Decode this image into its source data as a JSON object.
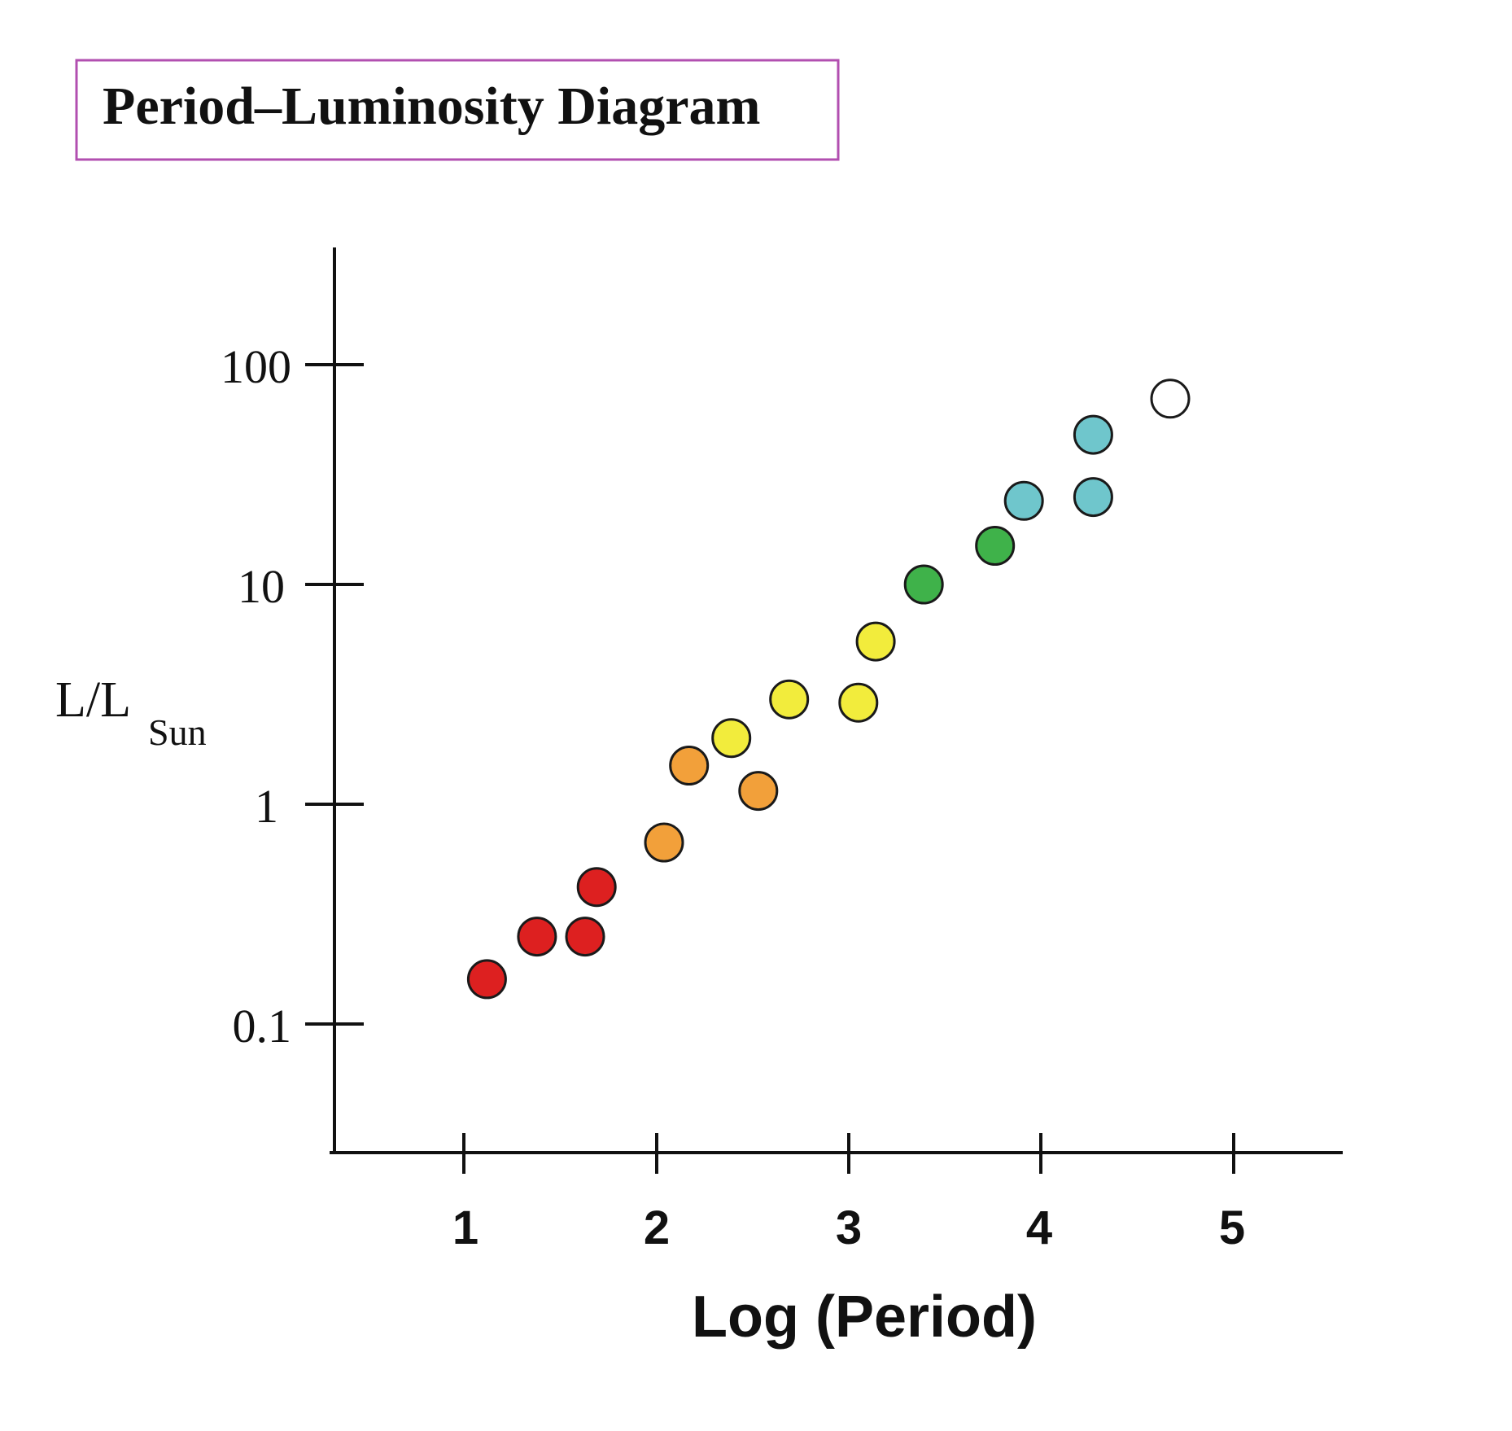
{
  "chart_data": {
    "type": "scatter",
    "title": "Period–Luminosity Diagram",
    "xlabel": "Log (Period)",
    "ylabel": "L/L",
    "ylabel_subscript": "Sun",
    "x_ticks": [
      "1",
      "2",
      "3",
      "4",
      "5"
    ],
    "y_ticks": [
      "100",
      "10",
      "1",
      "0.1"
    ],
    "y_scale": "log",
    "xlim": [
      0.33,
      5.55
    ],
    "ylim": [
      0.025,
      300
    ],
    "grid": false,
    "legend": "none",
    "colors": {
      "title_border": "#b24fb0",
      "axis": "#111111",
      "point_stroke": "#1a1a1a"
    },
    "points": [
      {
        "x": 1.12,
        "y": 0.16,
        "color": "#dd2020"
      },
      {
        "x": 1.38,
        "y": 0.25,
        "color": "#dd2020"
      },
      {
        "x": 1.63,
        "y": 0.25,
        "color": "#dd2020"
      },
      {
        "x": 1.69,
        "y": 0.42,
        "color": "#dd2020"
      },
      {
        "x": 2.04,
        "y": 0.67,
        "color": "#f2a03a"
      },
      {
        "x": 2.17,
        "y": 1.5,
        "color": "#f2a03a"
      },
      {
        "x": 2.53,
        "y": 1.15,
        "color": "#f2a03a"
      },
      {
        "x": 2.39,
        "y": 2.0,
        "color": "#f2ec3c"
      },
      {
        "x": 2.69,
        "y": 3.0,
        "color": "#f2ec3c"
      },
      {
        "x": 3.05,
        "y": 2.9,
        "color": "#f2ec3c"
      },
      {
        "x": 3.14,
        "y": 5.5,
        "color": "#f2ec3c"
      },
      {
        "x": 3.39,
        "y": 10.0,
        "color": "#3fb24a"
      },
      {
        "x": 3.76,
        "y": 15.0,
        "color": "#3fb24a"
      },
      {
        "x": 3.91,
        "y": 24.0,
        "color": "#6fc6cc"
      },
      {
        "x": 4.27,
        "y": 25.0,
        "color": "#6fc6cc"
      },
      {
        "x": 4.27,
        "y": 48.0,
        "color": "#6fc6cc"
      },
      {
        "x": 4.67,
        "y": 70.0,
        "color": "#ffffff"
      }
    ]
  }
}
